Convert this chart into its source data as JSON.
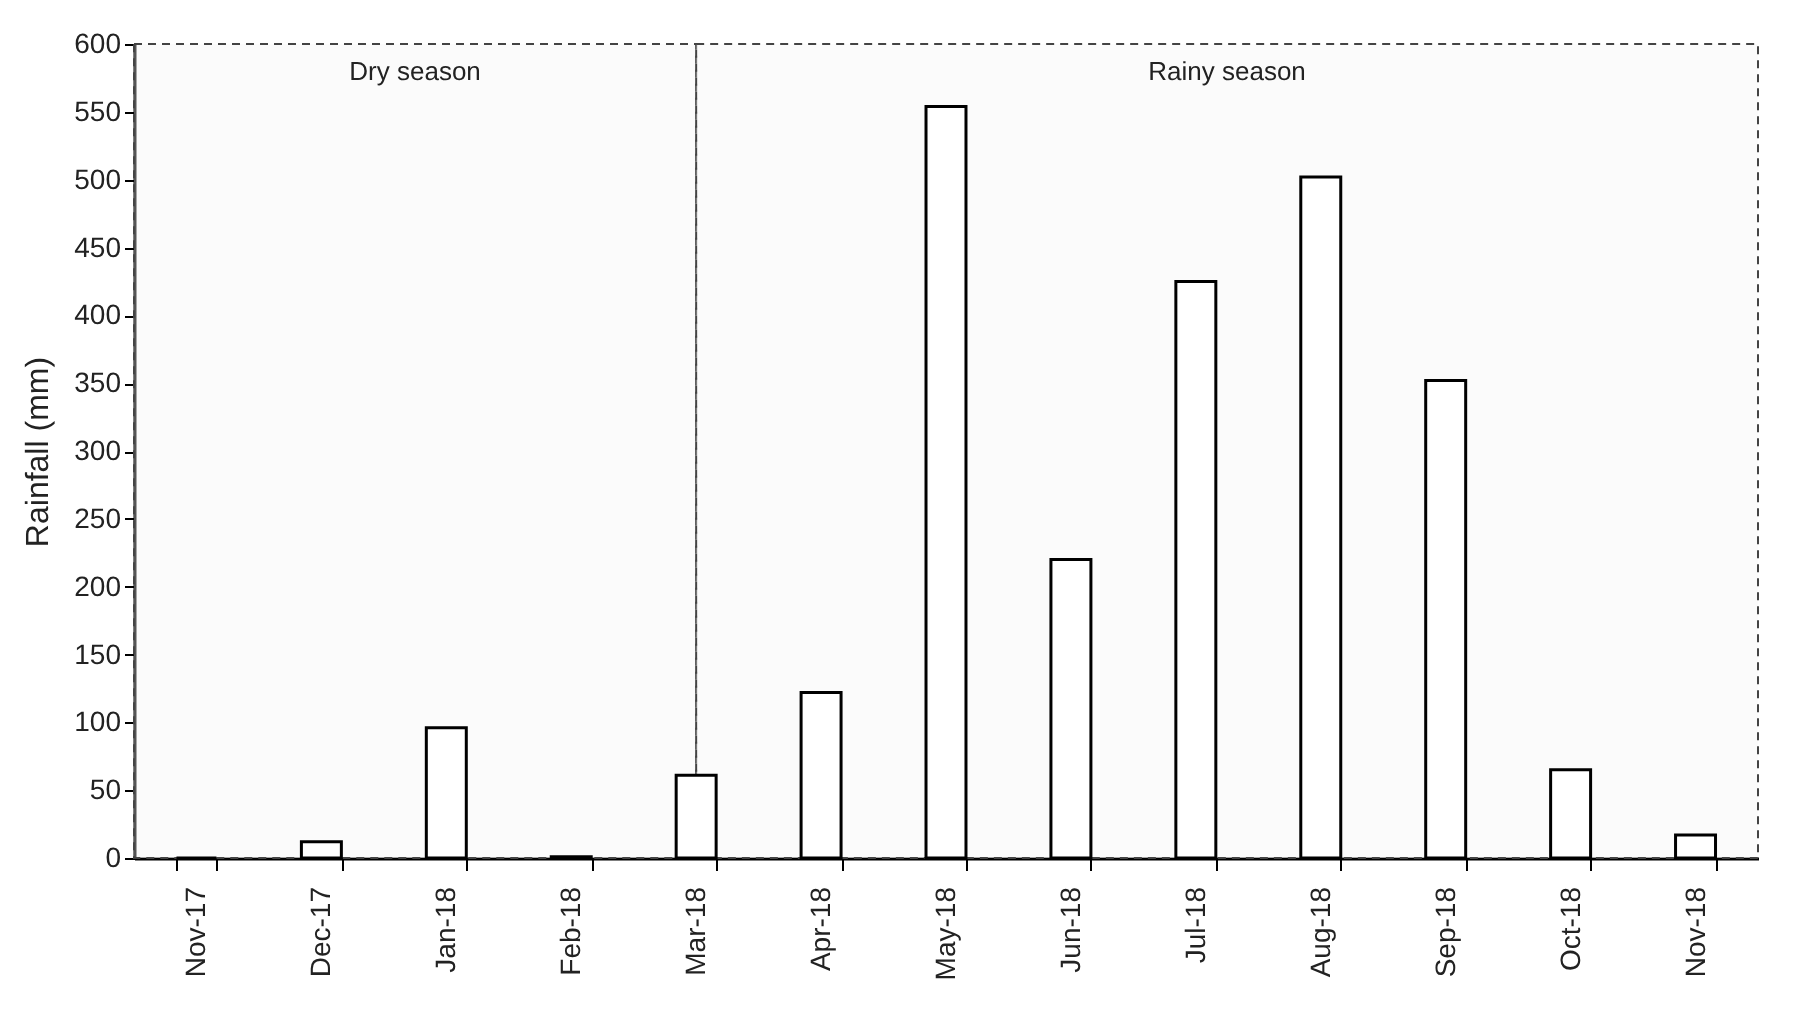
{
  "chart_data": {
    "type": "bar",
    "ylabel": "Rainfall (mm)",
    "categories": [
      "Nov-17",
      "Dec-17",
      "Jan-18",
      "Feb-18",
      "Mar-18",
      "Apr-18",
      "May-18",
      "Jun-18",
      "Jul-18",
      "Aug-18",
      "Sep-18",
      "Oct-18",
      "Nov-18"
    ],
    "values": [
      0,
      12,
      96,
      1,
      61,
      122,
      554,
      220,
      425,
      502,
      352,
      65,
      17
    ],
    "color": "#ffffff",
    "ylim": [
      0,
      600
    ],
    "yticks": [
      0,
      50,
      100,
      150,
      200,
      250,
      300,
      350,
      400,
      450,
      500,
      550,
      600
    ],
    "grid": false,
    "bands": [
      {
        "axis": "x",
        "from": "Nov-17",
        "to": "Mar-18",
        "label": "Dry season"
      },
      {
        "axis": "x",
        "from": "Mar-18",
        "to": "Nov-18",
        "label": "Rainy season"
      }
    ]
  }
}
